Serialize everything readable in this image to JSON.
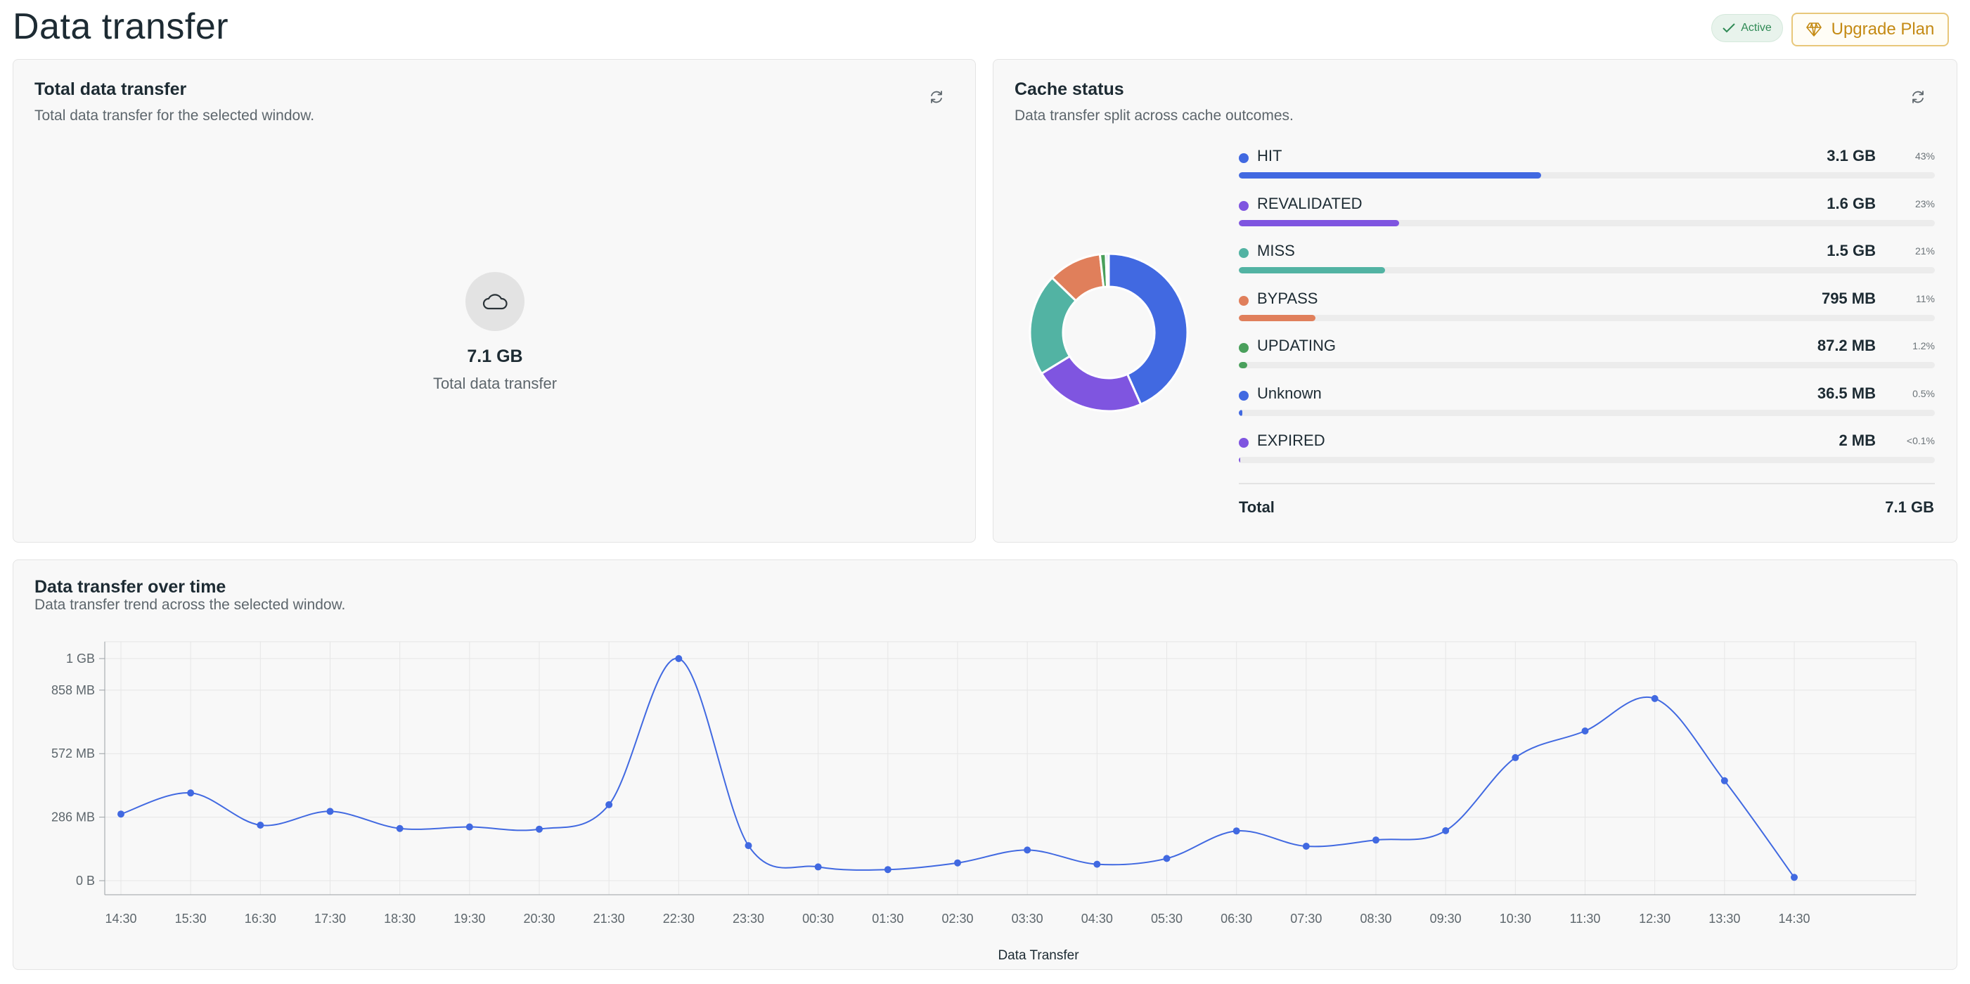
{
  "header": {
    "title": "Data transfer",
    "status_badge": "Active",
    "upgrade_label": "Upgrade Plan"
  },
  "total_card": {
    "title": "Total data transfer",
    "subtitle": "Total data transfer for the selected window.",
    "value": "7.1 GB",
    "value_label": "Total data transfer",
    "icons": {
      "refresh": "refresh-icon",
      "cloud": "cloud-icon"
    }
  },
  "cache_card": {
    "title": "Cache status",
    "subtitle": "Data transfer split across cache outcomes.",
    "items": [
      {
        "name": "HIT",
        "value": "3.1 GB",
        "pct": "43%",
        "share": 0.434,
        "color": "#4169e1"
      },
      {
        "name": "REVALIDATED",
        "value": "1.6 GB",
        "pct": "23%",
        "share": 0.23,
        "color": "#7f55e0"
      },
      {
        "name": "MISS",
        "value": "1.5 GB",
        "pct": "21%",
        "share": 0.21,
        "color": "#52b3a3"
      },
      {
        "name": "BYPASS",
        "value": "795 MB",
        "pct": "11%",
        "share": 0.11,
        "color": "#e07f5b"
      },
      {
        "name": "UPDATING",
        "value": "87.2 MB",
        "pct": "1.2%",
        "share": 0.012,
        "color": "#4aa05c"
      },
      {
        "name": "Unknown",
        "value": "36.5 MB",
        "pct": "0.5%",
        "share": 0.005,
        "color": "#4169e1"
      },
      {
        "name": "EXPIRED",
        "value": "2 MB",
        "pct": "<0.1%",
        "share": 0.001,
        "color": "#7f55e0"
      }
    ],
    "total_label": "Total",
    "total_value": "7.1 GB"
  },
  "time_card": {
    "title": "Data transfer over time",
    "subtitle": "Data transfer trend across the selected window."
  },
  "chart_data": {
    "type": "line",
    "title": "Data transfer over time",
    "xlabel": "Data Transfer",
    "ylabel": "",
    "x": [
      "14:30",
      "15:30",
      "16:30",
      "17:30",
      "18:30",
      "19:30",
      "20:30",
      "21:30",
      "22:30",
      "23:30",
      "00:30",
      "01:30",
      "02:30",
      "03:30",
      "04:30",
      "05:30",
      "06:30",
      "07:30",
      "08:30",
      "09:30",
      "10:30",
      "11:30",
      "12:30",
      "13:30",
      "14:30"
    ],
    "series": [
      {
        "values": [
          300,
          395,
          250,
          312,
          235,
          242,
          232,
          342,
          1000,
          158,
          62,
          50,
          80,
          138,
          74,
          100,
          224,
          155,
          183,
          225,
          554,
          674,
          820,
          450,
          15
        ]
      }
    ],
    "y_unit": "MB",
    "ylim": [
      0,
      1000
    ],
    "y_ticks": [
      0,
      286,
      572,
      858,
      1000
    ],
    "y_tick_labels": [
      "0 B",
      "286 MB",
      "572 MB",
      "858 MB",
      "1 GB"
    ],
    "grid": true,
    "color": "#4169e1"
  }
}
